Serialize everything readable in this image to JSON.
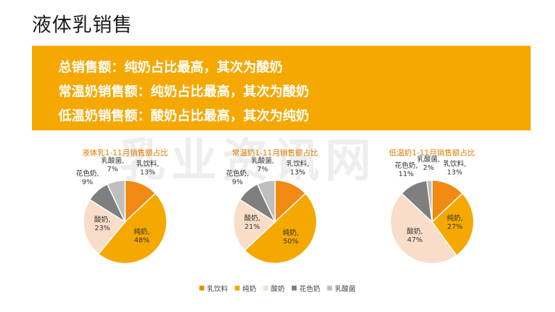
{
  "page": {
    "title": "液体乳销售",
    "banner_lines": [
      "总销售额：纯奶占比最高，其次为酸奶",
      "常温奶销售额：纯奶占比最高，其次为酸奶",
      "低温奶销售额：酸奶占比最高，其次为纯奶"
    ],
    "watermark": "乳业资讯网"
  },
  "colors": {
    "banner": "#f5a800",
    "乳饮料": "#f08a12",
    "纯奶": "#f5a800",
    "酸奶": "#f9ddc8",
    "花色奶": "#7f7f7f",
    "乳酸菌": "#bfbfbf"
  },
  "legend": [
    "乳饮料",
    "纯奶",
    "酸奶",
    "花色奶",
    "乳酸菌"
  ],
  "chart_data": [
    {
      "type": "pie",
      "title": "液体乳1-11月销售额占比",
      "categories": [
        "乳饮料",
        "纯奶",
        "酸奶",
        "花色奶",
        "乳酸菌"
      ],
      "values": [
        13,
        48,
        23,
        9,
        7
      ],
      "labels": [
        "乳饮料,\n13%",
        "纯奶,\n48%",
        "酸奶,\n23%",
        "花色奶,\n9%",
        "乳酸菌,\n7%"
      ]
    },
    {
      "type": "pie",
      "title": "常温奶1-11月销售额占比",
      "categories": [
        "乳饮料",
        "纯奶",
        "酸奶",
        "花色奶",
        "乳酸菌"
      ],
      "values": [
        13,
        50,
        21,
        9,
        7
      ],
      "labels": [
        "乳饮料,\n13%",
        "纯奶,\n50%",
        "酸奶,\n21%",
        "花色奶,\n9%",
        "乳酸菌,\n7%"
      ]
    },
    {
      "type": "pie",
      "title": "低温奶1-11月销售额占比",
      "categories": [
        "乳饮料",
        "纯奶",
        "酸奶",
        "花色奶",
        "乳酸菌"
      ],
      "values": [
        13,
        27,
        47,
        11,
        2
      ],
      "labels": [
        "乳饮料,\n13%",
        "纯奶,\n27%",
        "酸奶,\n47%",
        "花色奶,\n11%",
        "乳酸菌,\n2%"
      ]
    }
  ]
}
